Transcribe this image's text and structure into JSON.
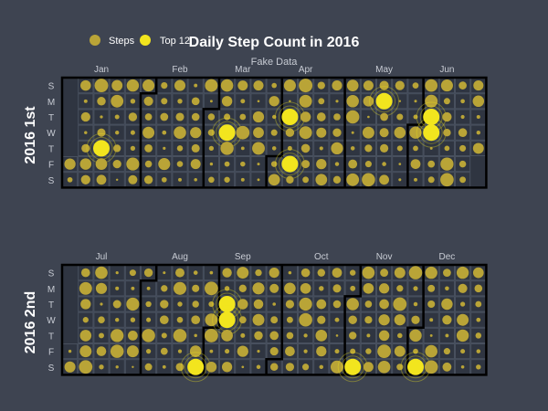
{
  "chart_data": {
    "type": "calendar-heatmap",
    "title": "Daily Step Count in 2016",
    "subtitle": "Fake Data",
    "legend": {
      "placement": "top-left",
      "items": [
        {
          "label": "Steps",
          "color": "#b9a437"
        },
        {
          "label": "Top 12",
          "color": "#f2e51e"
        }
      ]
    },
    "colors": {
      "background": "#3e4451",
      "cell": "#2f3541",
      "grid": "#48505e",
      "border": "#000000",
      "dot": "#b9a437",
      "top": "#f2e51e"
    },
    "panels": [
      {
        "row_label": "2016  1st",
        "months": [
          "Jan",
          "Feb",
          "Mar",
          "Apr",
          "May",
          "Jun"
        ],
        "month_week_index": [
          2,
          7,
          11,
          15,
          20,
          24
        ],
        "day_labels": [
          "S",
          "M",
          "T",
          "W",
          "T",
          "F",
          "S"
        ],
        "weeks": 27,
        "first_weekday": 5,
        "top_dates": [
          "2016-01-14",
          "2016-03-09",
          "2016-04-05",
          "2016-04-08",
          "2016-05-16",
          "2016-06-07",
          "2016-06-08"
        ]
      },
      {
        "row_label": "2016  2nd",
        "months": [
          "Jul",
          "Aug",
          "Sep",
          "Oct",
          "Nov",
          "Dec"
        ],
        "month_week_index": [
          2,
          7,
          11,
          16,
          20,
          24
        ],
        "day_labels": [
          "S",
          "M",
          "T",
          "W",
          "T",
          "F",
          "S"
        ],
        "weeks": 27,
        "first_weekday": 5,
        "top_dates": [
          "2016-08-27",
          "2016-09-06",
          "2016-09-07",
          "2016-11-05",
          "2016-12-03"
        ]
      }
    ]
  }
}
